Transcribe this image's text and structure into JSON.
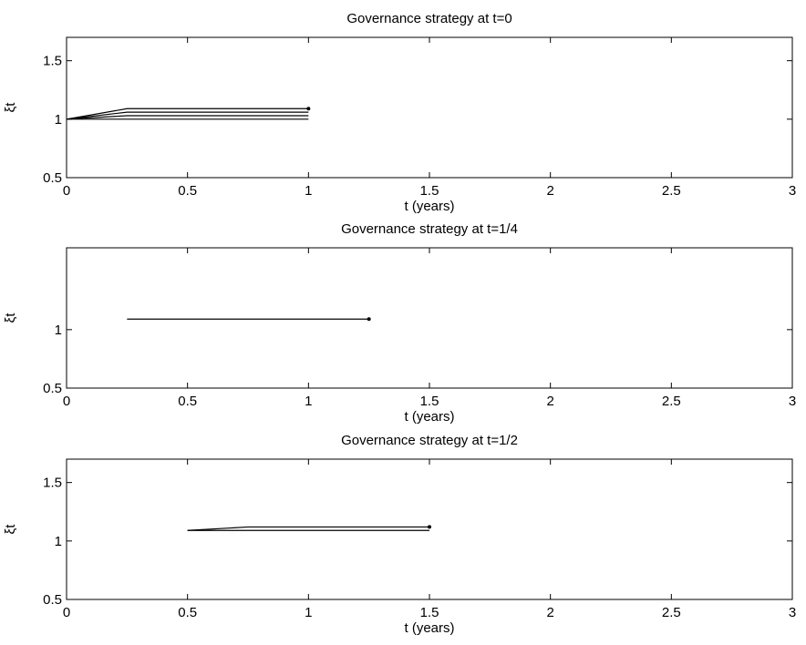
{
  "chart_data": [
    {
      "type": "line",
      "title": "Governance strategy at t=0",
      "xlabel": "t (years)",
      "ylabel": "ξt",
      "xlim": [
        0,
        3
      ],
      "ylim": [
        0.5,
        1.7
      ],
      "xticks": [
        0,
        0.5,
        1,
        1.5,
        2,
        2.5,
        3
      ],
      "xtick_labels": [
        "0",
        "0.5",
        "1",
        "1.5",
        "2",
        "2.5",
        "3"
      ],
      "yticks": [
        0.5,
        1,
        1.5
      ],
      "ytick_labels": [
        "0.5",
        "1",
        "1.5"
      ],
      "grid": false,
      "series": [
        {
          "x": [
            0,
            0.25,
            1
          ],
          "y": [
            1,
            1.09,
            1.09
          ]
        },
        {
          "x": [
            0,
            0.25,
            1
          ],
          "y": [
            1,
            1.06,
            1.06
          ]
        },
        {
          "x": [
            0,
            0.25,
            1
          ],
          "y": [
            1,
            1.03,
            1.03
          ]
        },
        {
          "x": [
            0,
            0.25,
            1
          ],
          "y": [
            1,
            1.0,
            1.0
          ]
        }
      ],
      "end_markers": [
        {
          "x": 1,
          "y": 1.09
        }
      ]
    },
    {
      "type": "line",
      "title": "Governance strategy at t=1/4",
      "xlabel": "t (years)",
      "ylabel": "ξt",
      "xlim": [
        0,
        3
      ],
      "ylim": [
        0.5,
        1.7
      ],
      "xticks": [
        0,
        0.5,
        1,
        1.5,
        2,
        2.5,
        3
      ],
      "xtick_labels": [
        "0",
        "0.5",
        "1",
        "1.5",
        "2",
        "2.5",
        "3"
      ],
      "yticks": [
        0.5,
        1
      ],
      "ytick_labels": [
        "0.5",
        "1"
      ],
      "grid": false,
      "series": [
        {
          "x": [
            0.25,
            1.25
          ],
          "y": [
            1.09,
            1.09
          ]
        }
      ],
      "end_markers": [
        {
          "x": 1.25,
          "y": 1.09
        }
      ]
    },
    {
      "type": "line",
      "title": "Governance strategy at t=1/2",
      "xlabel": "t (years)",
      "ylabel": "ξt",
      "xlim": [
        0,
        3
      ],
      "ylim": [
        0.5,
        1.7
      ],
      "xticks": [
        0,
        0.5,
        1,
        1.5,
        2,
        2.5,
        3
      ],
      "xtick_labels": [
        "0",
        "0.5",
        "1",
        "1.5",
        "2",
        "2.5",
        "3"
      ],
      "yticks": [
        0.5,
        1,
        1.5
      ],
      "ytick_labels": [
        "0.5",
        "1",
        "1.5"
      ],
      "grid": false,
      "series": [
        {
          "x": [
            0.5,
            0.75,
            1.5
          ],
          "y": [
            1.09,
            1.12,
            1.12
          ]
        },
        {
          "x": [
            0.5,
            0.75,
            1.5
          ],
          "y": [
            1.09,
            1.09,
            1.09
          ]
        }
      ],
      "end_markers": [
        {
          "x": 1.5,
          "y": 1.12
        }
      ]
    }
  ]
}
